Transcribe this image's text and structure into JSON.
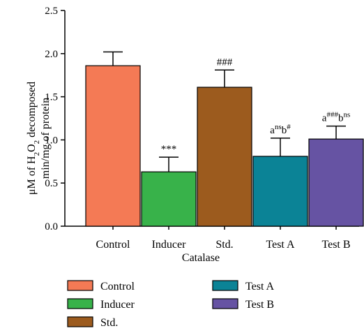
{
  "chart_data": {
    "type": "bar",
    "xlabel": "Catalase",
    "ylabel_line1_parts": [
      "μM of H",
      "2",
      "O",
      "2",
      " decomposed"
    ],
    "ylabel_line2": "min/mg of protein",
    "ylim": [
      0,
      2.5
    ],
    "yticks": [
      "0.0",
      "0.5",
      "1.0",
      "1.5",
      "2.0",
      "2.5"
    ],
    "ytick_values": [
      0,
      0.5,
      1.0,
      1.5,
      2.0,
      2.5
    ],
    "categories": [
      "Control",
      "Inducer",
      "Std.",
      "Test A",
      "Test B"
    ],
    "values": [
      1.86,
      0.63,
      1.61,
      0.81,
      1.01
    ],
    "errors": [
      0.16,
      0.17,
      0.2,
      0.21,
      0.15
    ],
    "colors": [
      "#f47a55",
      "#38b24a",
      "#9c5b1e",
      "#0b8396",
      "#6653a3"
    ],
    "annotations": [
      [],
      [
        {
          "t": "***",
          "sup": false
        }
      ],
      [
        {
          "t": "###",
          "sup": false
        }
      ],
      [
        {
          "t": "a",
          "sup": false
        },
        {
          "t": "ns",
          "sup": true
        },
        {
          "t": "b",
          "sup": false
        },
        {
          "t": "#",
          "sup": true
        }
      ],
      [
        {
          "t": "a",
          "sup": false
        },
        {
          "t": "###",
          "sup": true
        },
        {
          "t": "b",
          "sup": false
        },
        {
          "t": "ns",
          "sup": true
        }
      ]
    ],
    "legend": [
      "Control",
      "Inducer",
      "Std.",
      "Test A",
      "Test B"
    ],
    "legend_placement": "bottom",
    "grid": false
  }
}
